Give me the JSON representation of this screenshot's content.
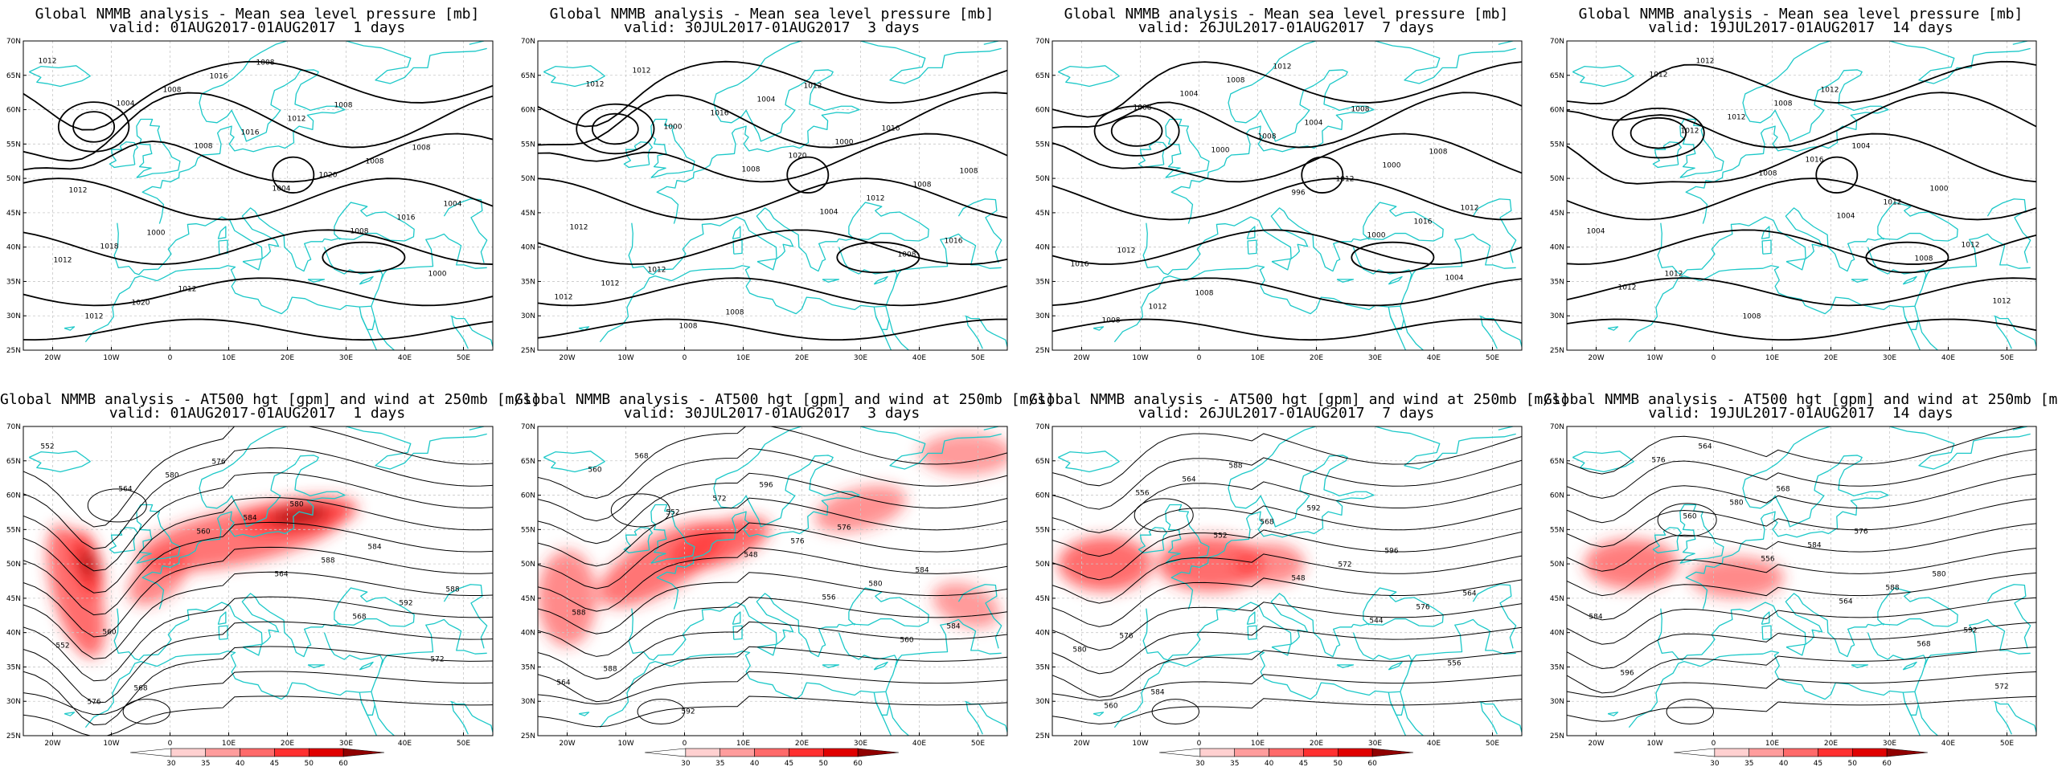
{
  "panels": [
    {
      "kind": "mslp",
      "title": "Global NMMB analysis - Mean sea level pressure [mb]",
      "valid": "valid: 01AUG2017-01AUG2017  1 days"
    },
    {
      "kind": "mslp",
      "title": "Global NMMB analysis - Mean sea level pressure [mb]",
      "valid": "valid: 30JUL2017-01AUG2017  3 days"
    },
    {
      "kind": "mslp",
      "title": "Global NMMB analysis - Mean sea level pressure [mb]",
      "valid": "valid: 26JUL2017-01AUG2017  7 days"
    },
    {
      "kind": "mslp",
      "title": "Global NMMB analysis - Mean sea level pressure [mb]",
      "valid": "valid: 19JUL2017-01AUG2017  14 days"
    },
    {
      "kind": "z500",
      "title": "Global NMMB analysis - AT500 hgt [gpm] and wind at 250mb [m/s]",
      "valid": "valid: 01AUG2017-01AUG2017  1 days"
    },
    {
      "kind": "z500",
      "title": "Global NMMB analysis - AT500 hgt [gpm] and wind at 250mb [m/s]",
      "valid": "valid: 30JUL2017-01AUG2017  3 days"
    },
    {
      "kind": "z500",
      "title": "Global NMMB analysis - AT500 hgt [gpm] and wind at 250mb [m/s]",
      "valid": "valid: 26JUL2017-01AUG2017  7 days"
    },
    {
      "kind": "z500",
      "title": "Global NMMB analysis - AT500 hgt [gpm] and wind at 250mb [m/s]",
      "valid": "valid: 19JUL2017-01AUG2017  14 days"
    }
  ],
  "axes": {
    "lon_labels": [
      "20W",
      "10W",
      "0",
      "10E",
      "20E",
      "30E",
      "40E",
      "50E"
    ],
    "lat_labels": [
      "70N",
      "65N",
      "60N",
      "55N",
      "50N",
      "45N",
      "40N",
      "35N",
      "30N",
      "25N"
    ]
  },
  "contour_labels": {
    "mslp": [
      [
        "1012",
        "1004",
        "1008",
        "1004",
        "1008",
        "1000",
        "1012",
        "1008",
        "1016",
        "1020",
        "1016",
        "1012",
        "1020",
        "1016",
        "1012",
        "1008",
        "1004",
        "1018",
        "1012",
        "1008",
        "1008",
        "1008",
        "1012",
        "1000"
      ],
      [
        "1012",
        "1000",
        "1008",
        "1004",
        "1008",
        "1012",
        "1012",
        "1016",
        "1020",
        "1012",
        "1016",
        "1012",
        "1008",
        "1004",
        "1000",
        "1008",
        "1012",
        "1012",
        "1008",
        "1012",
        "1016",
        "1008"
      ],
      [
        "1008",
        "1000",
        "996",
        "1000",
        "1004",
        "1008",
        "1004",
        "1008",
        "1012",
        "1016",
        "1016",
        "1012",
        "1008",
        "1004",
        "1000",
        "1012",
        "1012",
        "1008",
        "1012",
        "1008",
        "1008"
      ],
      [
        "1012",
        "1008",
        "1004",
        "1008",
        "1012",
        "1012",
        "1012",
        "1016",
        "1012",
        "1012",
        "1012",
        "1012",
        "1008",
        "1004",
        "1000",
        "1004",
        "1012",
        "1008",
        "1012"
      ]
    ],
    "z500": [
      [
        "552",
        "564",
        "560",
        "564",
        "568",
        "572",
        "576",
        "580",
        "584",
        "588",
        "592",
        "552",
        "568",
        "576",
        "580",
        "584",
        "588",
        "560"
      ],
      [
        "560",
        "552",
        "548",
        "556",
        "560",
        "564",
        "568",
        "572",
        "576",
        "580",
        "584",
        "588",
        "592",
        "596",
        "576",
        "584",
        "588"
      ],
      [
        "556",
        "552",
        "548",
        "544",
        "556",
        "560",
        "564",
        "568",
        "572",
        "576",
        "580",
        "584",
        "588",
        "592",
        "596",
        "564",
        "576"
      ],
      [
        "560",
        "556",
        "564",
        "568",
        "572",
        "576",
        "580",
        "584",
        "588",
        "592",
        "596",
        "564",
        "568",
        "576",
        "580",
        "584"
      ]
    ]
  },
  "colorbar": {
    "labels": [
      "30",
      "35",
      "40",
      "45",
      "50",
      "60"
    ],
    "colors": [
      "#ffffff",
      "#ffd0d0",
      "#ff9c9c",
      "#ff6a6a",
      "#ff3030",
      "#e00000",
      "#900000"
    ]
  },
  "style": {
    "coast": "#1cc8c8",
    "contour": "#000000",
    "grid": "#c8c8c8",
    "jet": "#ff0000"
  }
}
